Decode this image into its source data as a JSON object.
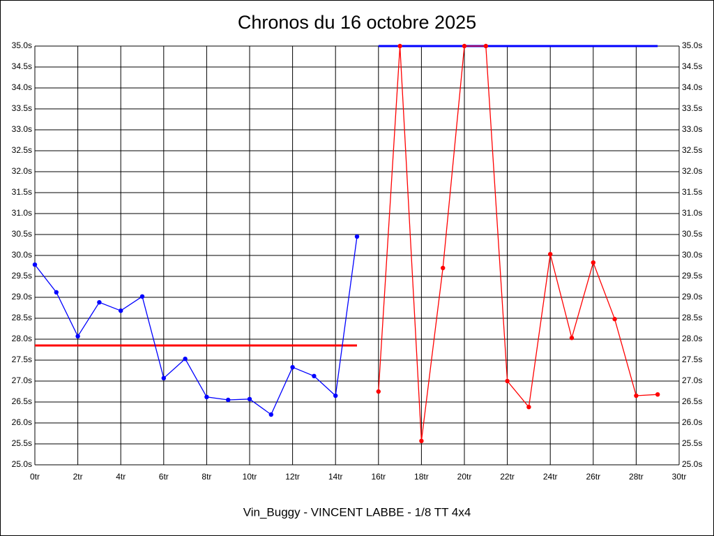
{
  "chart_data": {
    "type": "line",
    "title": "Chronos du 16 octobre 2025",
    "subtitle": "Vin_Buggy - VINCENT LABBE - 1/8 TT 4x4",
    "grid": true,
    "xlim": [
      0,
      30
    ],
    "xticks": [
      {
        "value": 0,
        "label": "0tr"
      },
      {
        "value": 2,
        "label": "2tr"
      },
      {
        "value": 4,
        "label": "4tr"
      },
      {
        "value": 6,
        "label": "6tr"
      },
      {
        "value": 8,
        "label": "8tr"
      },
      {
        "value": 10,
        "label": "10tr"
      },
      {
        "value": 12,
        "label": "12tr"
      },
      {
        "value": 14,
        "label": "14tr"
      },
      {
        "value": 16,
        "label": "16tr"
      },
      {
        "value": 18,
        "label": "18tr"
      },
      {
        "value": 20,
        "label": "20tr"
      },
      {
        "value": 22,
        "label": "22tr"
      },
      {
        "value": 24,
        "label": "24tr"
      },
      {
        "value": 26,
        "label": "26tr"
      },
      {
        "value": 28,
        "label": "28tr"
      },
      {
        "value": 30,
        "label": "30tr"
      }
    ],
    "ylim": [
      25,
      35
    ],
    "yticks": [
      {
        "value": 25,
        "label": "25.0s"
      },
      {
        "value": 25.5,
        "label": "25.5s"
      },
      {
        "value": 26,
        "label": "26.0s"
      },
      {
        "value": 26.5,
        "label": "26.5s"
      },
      {
        "value": 27,
        "label": "27.0s"
      },
      {
        "value": 27.5,
        "label": "27.5s"
      },
      {
        "value": 28,
        "label": "28.0s"
      },
      {
        "value": 28.5,
        "label": "28.5s"
      },
      {
        "value": 29,
        "label": "29.0s"
      },
      {
        "value": 29.5,
        "label": "29.5s"
      },
      {
        "value": 30,
        "label": "30.0s"
      },
      {
        "value": 30.5,
        "label": "30.5s"
      },
      {
        "value": 31,
        "label": "31.0s"
      },
      {
        "value": 31.5,
        "label": "31.5s"
      },
      {
        "value": 32,
        "label": "32.0s"
      },
      {
        "value": 32.5,
        "label": "32.5s"
      },
      {
        "value": 33,
        "label": "33.0s"
      },
      {
        "value": 33.5,
        "label": "33.5s"
      },
      {
        "value": 34,
        "label": "34.0s"
      },
      {
        "value": 34.5,
        "label": "34.5s"
      },
      {
        "value": 35,
        "label": "35.0s"
      }
    ],
    "series": [
      {
        "color": "#0000ff",
        "x": [
          0,
          1,
          2,
          3,
          4,
          5,
          6,
          7,
          8,
          9,
          10,
          11,
          12,
          13,
          14,
          15
        ],
        "values": [
          29.78,
          29.12,
          28.07,
          28.88,
          28.68,
          29.02,
          27.07,
          27.53,
          26.62,
          26.55,
          26.57,
          26.2,
          27.33,
          27.12,
          26.65,
          30.45
        ]
      },
      {
        "color": "#ff0000",
        "x": [
          16,
          17,
          18,
          19,
          20,
          21,
          22,
          23,
          24,
          25,
          26,
          27,
          28,
          29
        ],
        "values": [
          26.75,
          35,
          25.57,
          29.7,
          35,
          35,
          27,
          26.38,
          30.03,
          28.03,
          29.83,
          28.48,
          26.65,
          26.68
        ]
      }
    ],
    "reference_lines": [
      {
        "color": "#ff0000",
        "x": [
          0,
          15
        ],
        "value": 27.85
      },
      {
        "color": "#0000ff",
        "x": [
          16,
          29
        ],
        "value": 35
      }
    ]
  }
}
